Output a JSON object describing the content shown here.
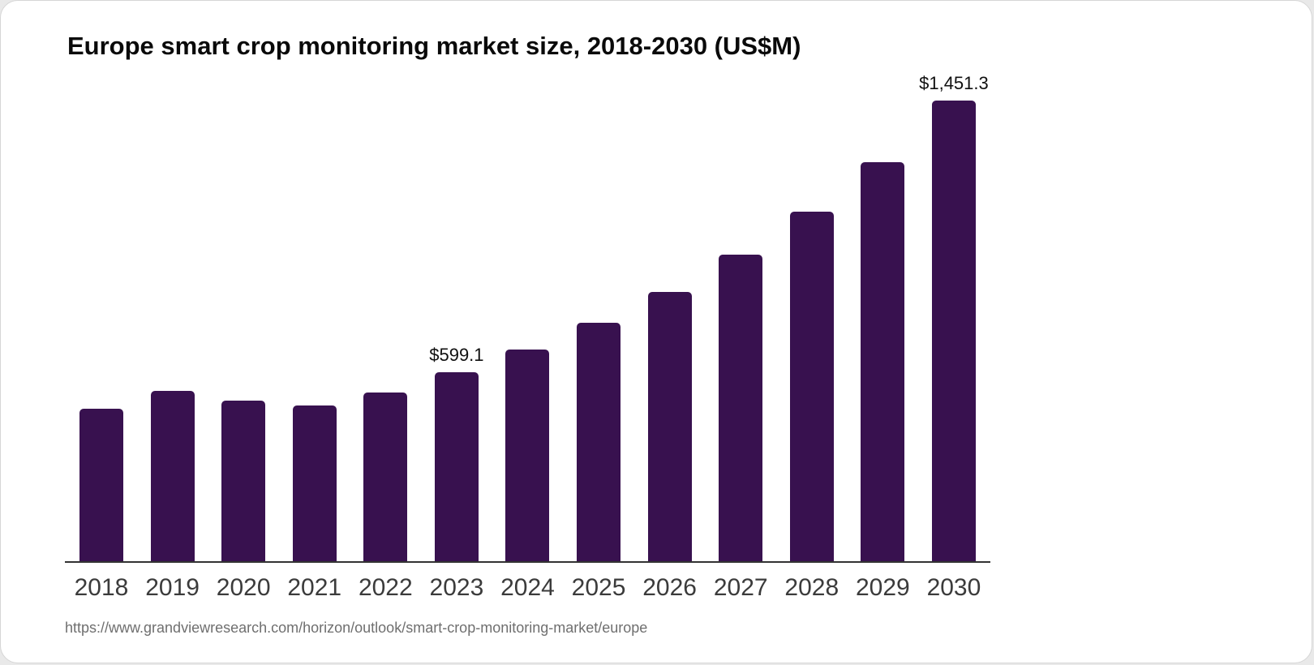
{
  "page": {
    "background_color": "#e9e9e9",
    "card_background_color": "#ffffff"
  },
  "chart_data": {
    "type": "bar",
    "title": "Europe smart crop monitoring market size, 2018-2030 (US$M)",
    "categories": [
      "2018",
      "2019",
      "2020",
      "2021",
      "2022",
      "2023",
      "2024",
      "2025",
      "2026",
      "2027",
      "2028",
      "2029",
      "2030"
    ],
    "values": [
      484,
      540,
      509,
      494,
      535,
      599.1,
      670,
      754,
      850,
      968,
      1103,
      1258,
      1451.3
    ],
    "data_labels": [
      "",
      "",
      "",
      "",
      "",
      "$599.1",
      "",
      "",
      "",
      "",
      "",
      "",
      "$1,451.3"
    ],
    "xlabel": "",
    "ylabel": "",
    "ylim": [
      0,
      1451.3
    ],
    "grid": false,
    "legend_position": "none",
    "bar_color": "#38114F",
    "axis_line_color": "#333333",
    "tick_label_color": "#3b3b3b",
    "data_label_color": "#101010"
  },
  "footer": {
    "source_url": "https://www.grandviewresearch.com/horizon/outlook/smart-crop-monitoring-market/europe"
  }
}
